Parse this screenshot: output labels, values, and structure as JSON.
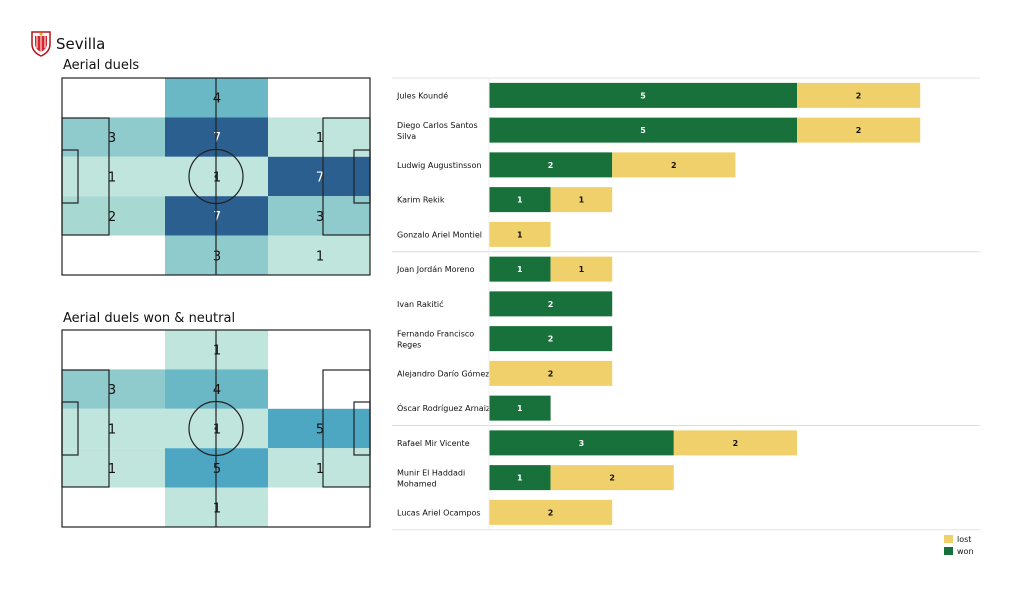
{
  "header": {
    "team": "Sevilla",
    "logo_icon": "sevilla-crest-icon"
  },
  "colors": {
    "won": "#18703a",
    "lost": "#f0d06a",
    "heat_scale": [
      "#ffffff",
      "#bfe5dc",
      "#a7d9d2",
      "#8fcacc",
      "#6ab7c5",
      "#4da6c2",
      "#3a86ad",
      "#2a5f8f"
    ]
  },
  "pitch_maps": [
    {
      "title": "Aerial duels",
      "grid": [
        [
          0,
          4,
          0
        ],
        [
          3,
          7,
          1
        ],
        [
          1,
          1,
          7
        ],
        [
          2,
          7,
          3
        ],
        [
          0,
          3,
          1
        ]
      ],
      "labels": [
        [
          "",
          "4",
          ""
        ],
        [
          "3",
          "7",
          "1"
        ],
        [
          "1",
          "1",
          "7"
        ],
        [
          "2",
          "7",
          "3"
        ],
        [
          "",
          "3",
          "1"
        ]
      ]
    },
    {
      "title": "Aerial duels won & neutral",
      "grid": [
        [
          0,
          1,
          0
        ],
        [
          3,
          4,
          0
        ],
        [
          1,
          1,
          5
        ],
        [
          1,
          5,
          1
        ],
        [
          0,
          1,
          0
        ]
      ],
      "labels": [
        [
          "",
          "1",
          ""
        ],
        [
          "3",
          "4",
          ""
        ],
        [
          "1",
          "1",
          "5"
        ],
        [
          "1",
          "5",
          "1"
        ],
        [
          "",
          "1",
          ""
        ]
      ]
    }
  ],
  "chart_data": {
    "type": "bar",
    "orientation": "horizontal",
    "stacked": true,
    "categories": [
      "Jules Koundé",
      "Diego Carlos Santos Silva",
      "Ludwig Augustinsson",
      "Karim Rekik",
      "Gonzalo Ariel Montiel",
      "Joan Jordán Moreno",
      "Ivan Rakitić",
      "Fernando Francisco Reges",
      "Alejandro Darío Gómez",
      "Óscar Rodríguez Arnaiz",
      "Rafael Mir Vicente",
      "Munir El Haddadi Mohamed",
      "Lucas Ariel Ocampos"
    ],
    "category_lines": [
      [
        "Jules Koundé"
      ],
      [
        "Diego Carlos Santos",
        "Silva"
      ],
      [
        "Ludwig Augustinsson"
      ],
      [
        "Karim Rekik"
      ],
      [
        "Gonzalo Ariel Montiel"
      ],
      [
        "Joan Jordán Moreno"
      ],
      [
        "Ivan Rakitić"
      ],
      [
        "Fernando Francisco",
        "Reges"
      ],
      [
        "Alejandro Darío Gómez"
      ],
      [
        "Óscar Rodríguez Arnaiz"
      ],
      [
        "Rafael Mir Vicente"
      ],
      [
        "Munir El Haddadi",
        "Mohamed"
      ],
      [
        "Lucas Ariel Ocampos"
      ]
    ],
    "series": [
      {
        "name": "won",
        "color": "#18703a",
        "values": [
          5,
          5,
          2,
          1,
          0,
          1,
          2,
          2,
          0,
          1,
          3,
          1,
          0
        ]
      },
      {
        "name": "lost",
        "color": "#f0d06a",
        "values": [
          2,
          2,
          2,
          1,
          1,
          1,
          0,
          0,
          2,
          0,
          2,
          2,
          2
        ]
      }
    ],
    "xlim": [
      0,
      8
    ],
    "group_separators_after": [
      4,
      9
    ],
    "legend": {
      "position": "bottom-right",
      "entries": [
        "lost",
        "won"
      ]
    }
  }
}
